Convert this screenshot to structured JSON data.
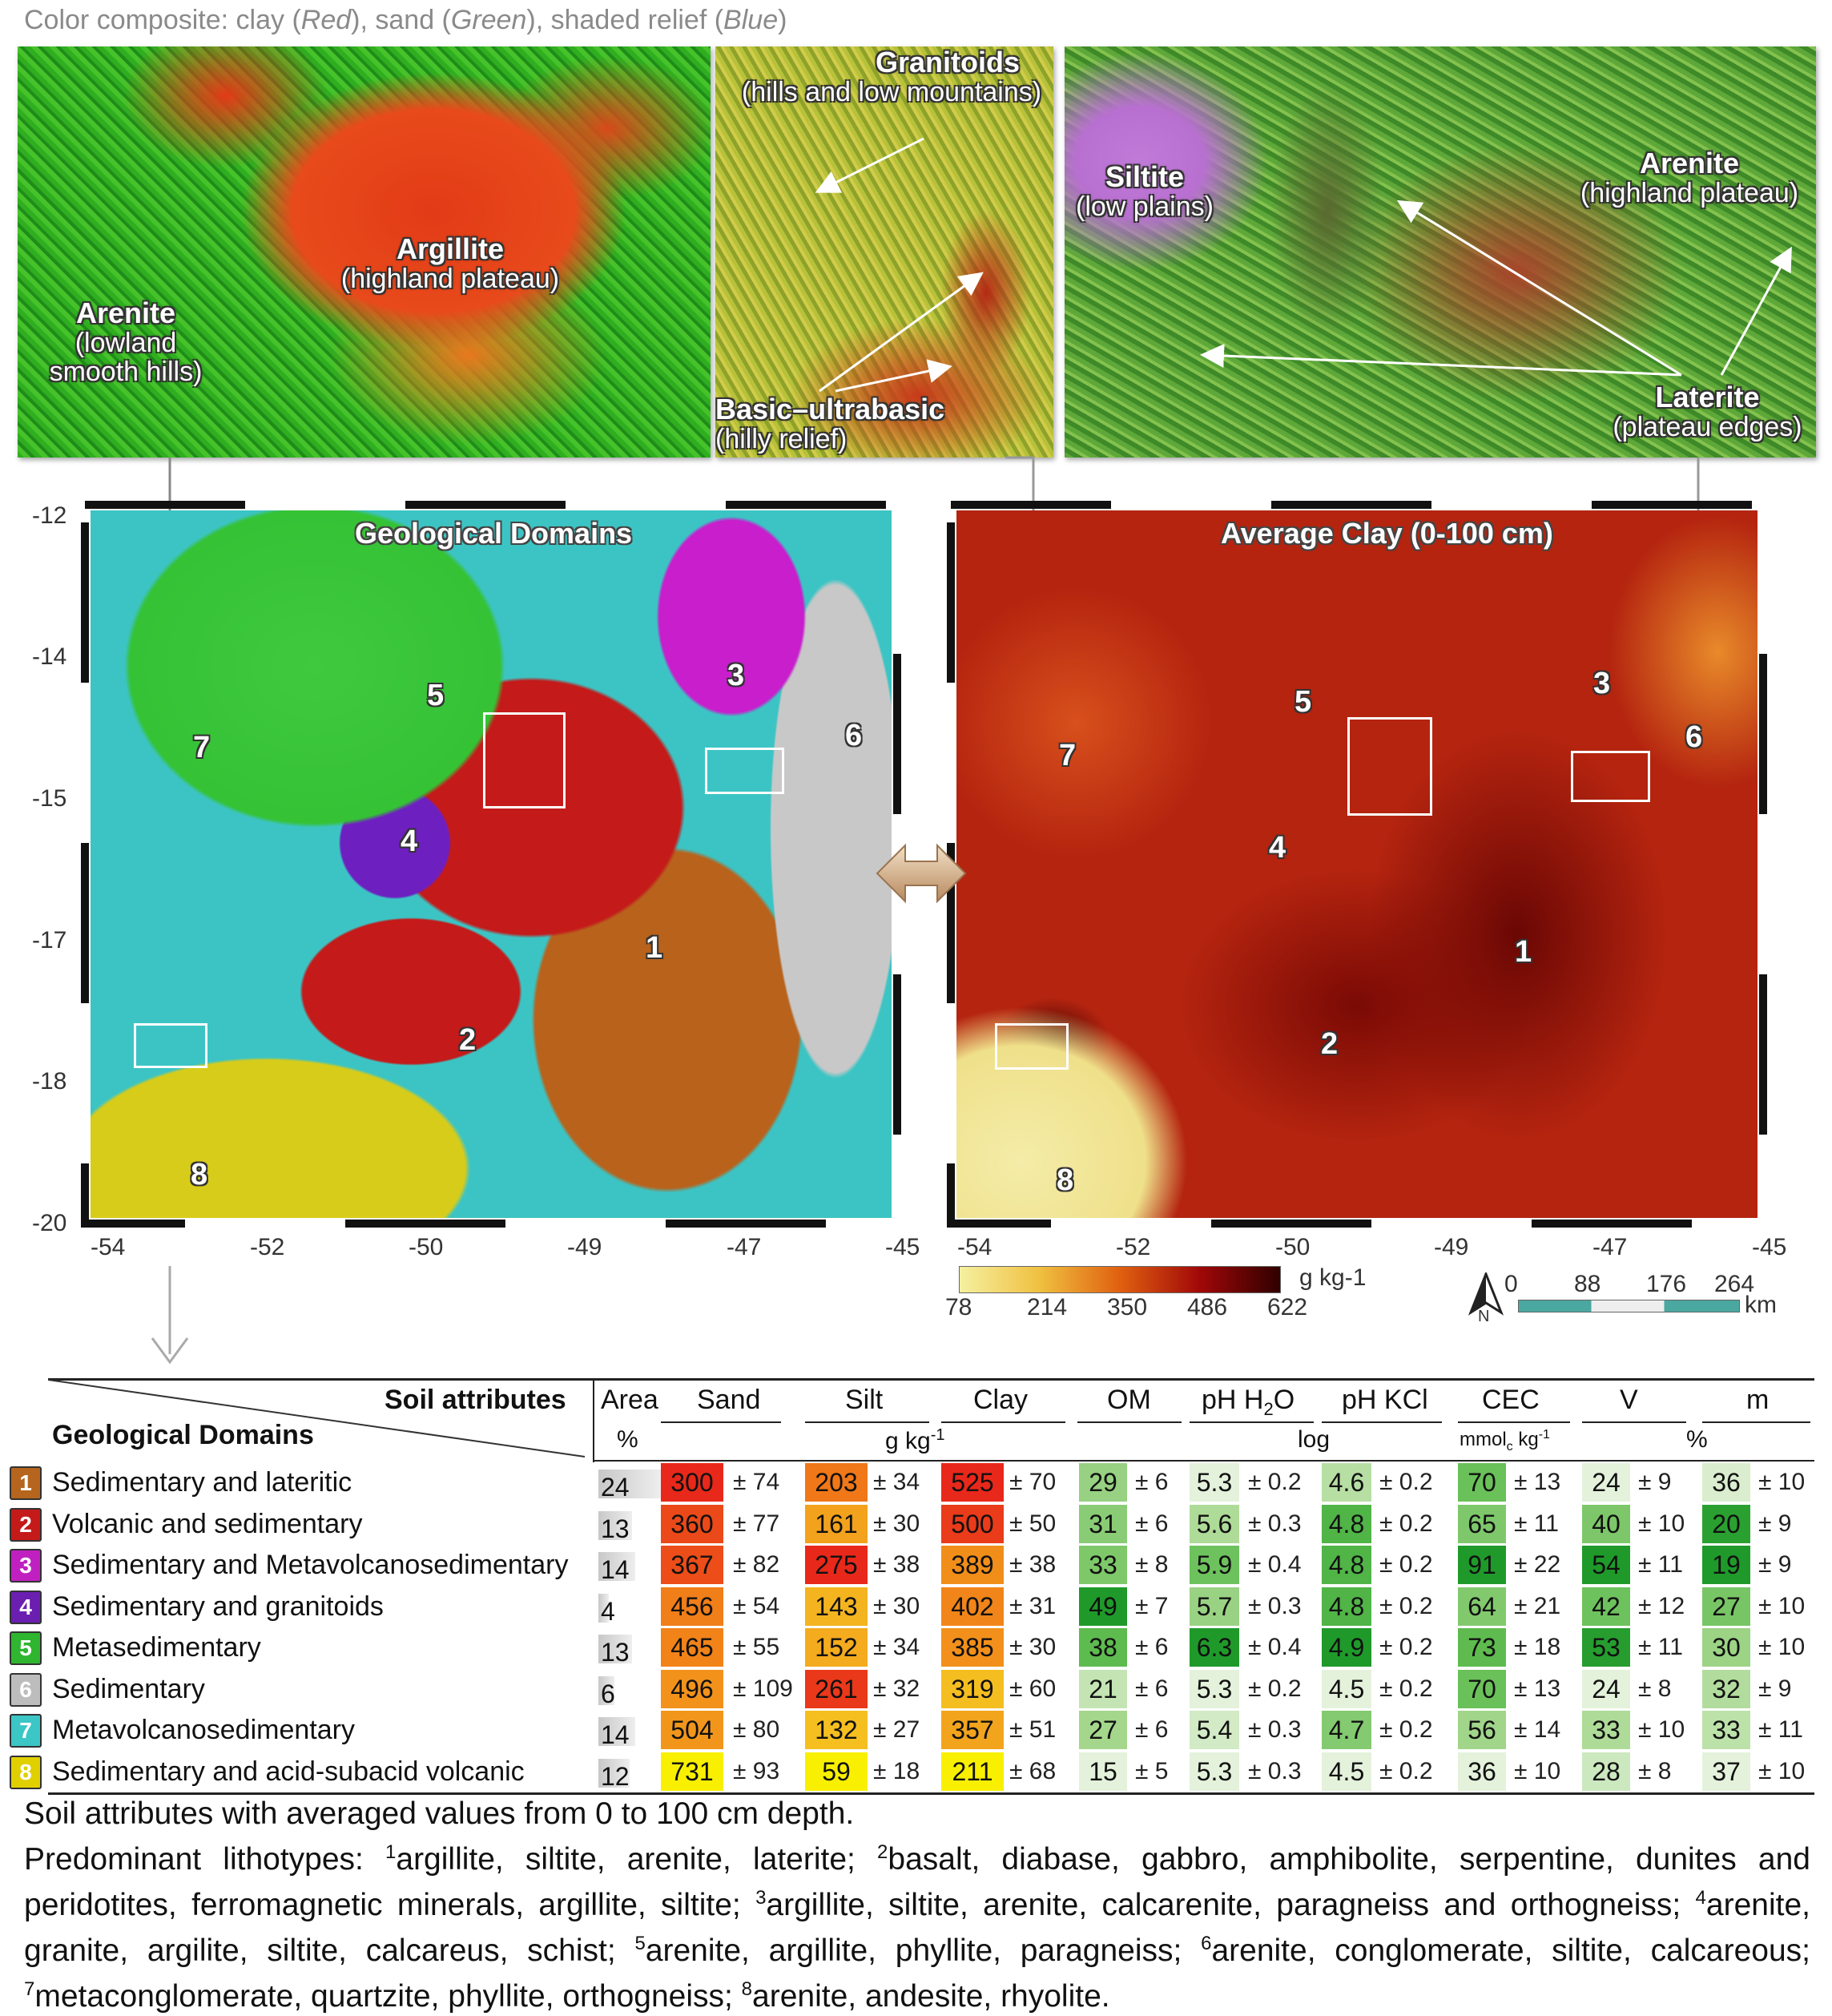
{
  "composite": {
    "caption_prefix": "Color composite: clay (",
    "caption_red": "Red",
    "caption_mid1": "), sand (",
    "caption_green": "Green",
    "caption_mid2": "), shaded relief (",
    "caption_blue": "Blue",
    "caption_suffix": ")",
    "panel1": {
      "l1_title": "Argillite",
      "l1_sub": "(highland plateau)",
      "l2_title": "Arenite",
      "l2_sub1": "(lowland",
      "l2_sub2": "smooth hills)"
    },
    "panel2": {
      "l1_title": "Granitoids",
      "l1_sub": "(hills and low mountains)",
      "l2_title": "Basic–ultrabasic",
      "l2_sub": "(hilly relief)"
    },
    "panel3": {
      "l1_title": "Siltite",
      "l1_sub": "(low plains)",
      "l2_title": "Arenite",
      "l2_sub": "(highland plateau)",
      "l3_title": "Laterite",
      "l3_sub": "(plateau edges)"
    }
  },
  "maps": {
    "left_title": "Geological Domains",
    "right_title": "Average Clay (0-100 cm)",
    "y_ticks": [
      "-12",
      "-14",
      "-15",
      "-17",
      "-18",
      "-20"
    ],
    "x_ticks_left": [
      "-54",
      "-52",
      "-50",
      "-49",
      "-47",
      "-45"
    ],
    "x_ticks_right": [
      "-54",
      "-52",
      "-50",
      "-49",
      "-47",
      "-45"
    ],
    "domain_numbers": [
      "1",
      "2",
      "3",
      "4",
      "5",
      "6",
      "7",
      "8"
    ]
  },
  "clay_legend": {
    "unit": "g kg-1",
    "ticks": [
      "78",
      "214",
      "350",
      "486",
      "622"
    ]
  },
  "scale_bar": {
    "north": "N",
    "ticks": [
      "0",
      "88",
      "176",
      "264"
    ],
    "unit": "km"
  },
  "table": {
    "header_top": "Soil attributes",
    "header_left": "Geological Domains",
    "columns": [
      "Area",
      "Sand",
      "Silt",
      "Clay",
      "OM",
      "pH H",
      "2",
      "O",
      "pH KCl",
      "CEC",
      "V",
      "m"
    ],
    "units": {
      "area": "%",
      "gkg": "g kg",
      "gkg_sup": "-1",
      "log": "log",
      "cec_a": "mmol",
      "cec_sub": "c",
      "cec_b": " kg",
      "cec_sup": "-1",
      "pct": "%"
    },
    "rows": [
      {
        "n": "1",
        "name": "Sedimentary and lateritic",
        "color": "#b5651d",
        "area": "24",
        "sand": "300",
        "sand_sd": "± 74",
        "silt": "203",
        "silt_sd": "± 34",
        "clay": "525",
        "clay_sd": "± 70",
        "om": "29",
        "om_sd": "± 6",
        "ph": "5.3",
        "ph_sd": "± 0.2",
        "kcl": "4.6",
        "kcl_sd": "± 0.2",
        "cec": "70",
        "cec_sd": "± 13",
        "v": "24",
        "v_sd": "±  9",
        "m": "36",
        "m_sd": "± 10"
      },
      {
        "n": "2",
        "name": "Volcanic and sedimentary",
        "color": "#c41a1a",
        "area": "13",
        "sand": "360",
        "sand_sd": "± 77",
        "silt": "161",
        "silt_sd": "± 30",
        "clay": "500",
        "clay_sd": "± 50",
        "om": "31",
        "om_sd": "± 6",
        "ph": "5.6",
        "ph_sd": "± 0.3",
        "kcl": "4.8",
        "kcl_sd": "± 0.2",
        "cec": "65",
        "cec_sd": "± 11",
        "v": "40",
        "v_sd": "± 10",
        "m": "20",
        "m_sd": "±  9"
      },
      {
        "n": "3",
        "name": "Sedimentary and Metavolcanosedimentary",
        "color": "#c020c0",
        "area": "14",
        "sand": "367",
        "sand_sd": "± 82",
        "silt": "275",
        "silt_sd": "± 38",
        "clay": "389",
        "clay_sd": "± 38",
        "om": "33",
        "om_sd": "± 8",
        "ph": "5.9",
        "ph_sd": "± 0.4",
        "kcl": "4.8",
        "kcl_sd": "± 0.2",
        "cec": "91",
        "cec_sd": "± 22",
        "v": "54",
        "v_sd": "± 11",
        "m": "19",
        "m_sd": "±  9"
      },
      {
        "n": "4",
        "name": "Sedimentary and granitoids",
        "color": "#6a1fb0",
        "area": "4",
        "sand": "456",
        "sand_sd": "± 54",
        "silt": "143",
        "silt_sd": "± 30",
        "clay": "402",
        "clay_sd": "± 31",
        "om": "49",
        "om_sd": "± 7",
        "ph": "5.7",
        "ph_sd": "± 0.3",
        "kcl": "4.8",
        "kcl_sd": "± 0.2",
        "cec": "64",
        "cec_sd": "± 21",
        "v": "42",
        "v_sd": "± 12",
        "m": "27",
        "m_sd": "± 10"
      },
      {
        "n": "5",
        "name": "Metasedimentary",
        "color": "#2fb52f",
        "area": "13",
        "sand": "465",
        "sand_sd": "± 55",
        "silt": "152",
        "silt_sd": "± 34",
        "clay": "385",
        "clay_sd": "± 30",
        "om": "38",
        "om_sd": "± 6",
        "ph": "6.3",
        "ph_sd": "± 0.4",
        "kcl": "4.9",
        "kcl_sd": "± 0.2",
        "cec": "73",
        "cec_sd": "± 18",
        "v": "53",
        "v_sd": "± 11",
        "m": "30",
        "m_sd": "± 10"
      },
      {
        "n": "6",
        "name": "Sedimentary",
        "color": "#bdbdbd",
        "area": "6",
        "sand": "496",
        "sand_sd": "± 109",
        "silt": "261",
        "silt_sd": "± 32",
        "clay": "319",
        "clay_sd": "± 60",
        "om": "21",
        "om_sd": "± 6",
        "ph": "5.3",
        "ph_sd": "± 0.2",
        "kcl": "4.5",
        "kcl_sd": "± 0.2",
        "cec": "70",
        "cec_sd": "± 13",
        "v": "24",
        "v_sd": "±  8",
        "m": "32",
        "m_sd": "±  9"
      },
      {
        "n": "7",
        "name": "Metavolcanosedimentary",
        "color": "#3cc6c6",
        "area": "14",
        "sand": "504",
        "sand_sd": "± 80",
        "silt": "132",
        "silt_sd": "± 27",
        "clay": "357",
        "clay_sd": "± 51",
        "om": "27",
        "om_sd": "± 6",
        "ph": "5.4",
        "ph_sd": "± 0.3",
        "kcl": "4.7",
        "kcl_sd": "± 0.2",
        "cec": "56",
        "cec_sd": "± 14",
        "v": "33",
        "v_sd": "± 10",
        "m": "33",
        "m_sd": "± 11"
      },
      {
        "n": "8",
        "name": "Sedimentary and acid-subacid volcanic",
        "color": "#e0d000",
        "area": "12",
        "sand": "731",
        "sand_sd": "± 93",
        "silt": "59",
        "silt_sd": "± 18",
        "clay": "211",
        "clay_sd": "± 68",
        "om": "15",
        "om_sd": "± 5",
        "ph": "5.3",
        "ph_sd": "± 0.3",
        "kcl": "4.5",
        "kcl_sd": "± 0.2",
        "cec": "36",
        "cec_sd": "± 10",
        "v": "28",
        "v_sd": "±  8",
        "m": "37",
        "m_sd": "± 10"
      }
    ]
  },
  "notes": {
    "line1": "Soil attributes with averaged values from 0 to 100 cm depth.",
    "p_prefix": "Predominant lithotypes: ",
    "s1": "1",
    "t1": "argillite, siltite, arenite, laterite; ",
    "s2": "2",
    "t2": "basalt, diabase, gabbro, amphibolite, serpentine, dunites and peridotites, ferromagnetic minerals, argillite, siltite; ",
    "s3": "3",
    "t3": "argillite, siltite, arenite, calcarenite, paragneiss and orthogneiss; ",
    "s4": "4",
    "t4": "arenite, granite, argilite, siltite, calcareus, schist; ",
    "s5": "5",
    "t5": "arenite, argillite, phyllite, paragneiss; ",
    "s6": "6",
    "t6": "arenite, conglomerate, siltite, calcareous; ",
    "s7": "7",
    "t7": "metaconglomerate, quartzite, phyllite, orthogneiss; ",
    "s8": "8",
    "t8": "arenite, andesite, rhyolite."
  }
}
